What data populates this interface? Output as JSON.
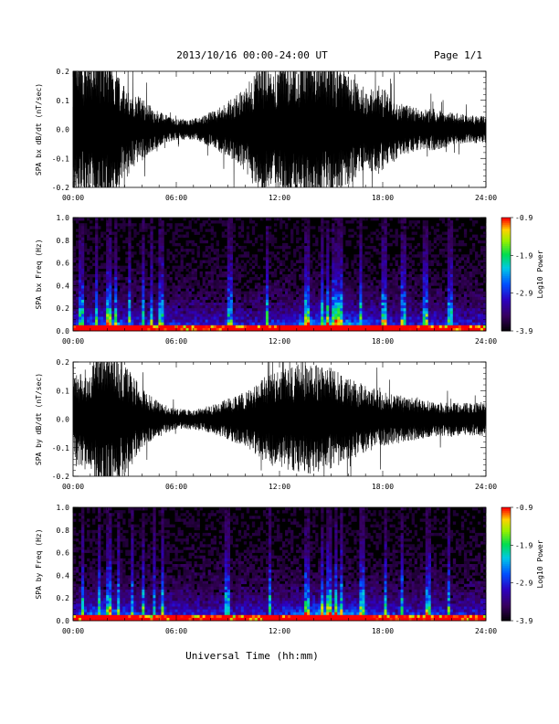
{
  "header": {
    "title": "2013/10/16  00:00-24:00 UT",
    "page": "Page 1/1"
  },
  "footer": {
    "xlabel": "Universal Time (hh:mm)"
  },
  "colors": {
    "trace": "#000000",
    "background": "#ffffff",
    "spec_bg": "#000000"
  },
  "chart_data": [
    {
      "type": "line",
      "ylabel": "SPA bx dB/dt (nT/sec)",
      "x_ticks": [
        "00:00",
        "06:00",
        "12:00",
        "18:00",
        "24:00"
      ],
      "x_range": [
        "00:00",
        "24:00"
      ],
      "y_ticks": [
        "0.2",
        "0.1",
        "0.0",
        "-0.1",
        "-0.2"
      ],
      "ylim": [
        -0.2,
        0.2
      ],
      "amplitude_envelope": [
        {
          "hour": 0,
          "amp": 0.22
        },
        {
          "hour": 1,
          "amp": 0.2
        },
        {
          "hour": 2,
          "amp": 0.25
        },
        {
          "hour": 3,
          "amp": 0.12
        },
        {
          "hour": 4,
          "amp": 0.09
        },
        {
          "hour": 5,
          "amp": 0.05
        },
        {
          "hour": 6,
          "amp": 0.03
        },
        {
          "hour": 7,
          "amp": 0.03
        },
        {
          "hour": 8,
          "amp": 0.05
        },
        {
          "hour": 9,
          "amp": 0.08
        },
        {
          "hour": 10,
          "amp": 0.12
        },
        {
          "hour": 11,
          "amp": 0.2
        },
        {
          "hour": 12,
          "amp": 0.18
        },
        {
          "hour": 13,
          "amp": 0.2
        },
        {
          "hour": 14,
          "amp": 0.22
        },
        {
          "hour": 15,
          "amp": 0.2
        },
        {
          "hour": 16,
          "amp": 0.16
        },
        {
          "hour": 17,
          "amp": 0.12
        },
        {
          "hour": 18,
          "amp": 0.12
        },
        {
          "hour": 19,
          "amp": 0.08
        },
        {
          "hour": 20,
          "amp": 0.06
        },
        {
          "hour": 21,
          "amp": 0.06
        },
        {
          "hour": 22,
          "amp": 0.05
        },
        {
          "hour": 23,
          "amp": 0.04
        },
        {
          "hour": 24,
          "amp": 0.04
        }
      ]
    },
    {
      "type": "heatmap",
      "ylabel": "SPA bx Freq (Hz)",
      "x_ticks": [
        "00:00",
        "06:00",
        "12:00",
        "18:00",
        "24:00"
      ],
      "y_ticks": [
        "1.0",
        "0.8",
        "0.6",
        "0.4",
        "0.2",
        "0.0"
      ],
      "ylim": [
        0.0,
        1.0
      ],
      "colorbar": {
        "label": "Log10 Power",
        "ticks": [
          "-0.9",
          "-1.9",
          "-2.9",
          "-3.9"
        ],
        "range": [
          -3.9,
          -0.9
        ]
      },
      "bursts_hours": [
        0.5,
        1.4,
        2.1,
        2.5,
        3.3,
        4.1,
        4.6,
        5.1,
        9.1,
        11.3,
        13.6,
        14.5,
        14.8,
        15.2,
        15.5,
        16.7,
        18.1,
        19.2,
        20.5,
        21.9
      ]
    },
    {
      "type": "line",
      "ylabel": "SPA by dB/dt (nT/sec)",
      "x_ticks": [
        "00:00",
        "06:00",
        "12:00",
        "18:00",
        "24:00"
      ],
      "x_range": [
        "00:00",
        "24:00"
      ],
      "y_ticks": [
        "0.2",
        "0.1",
        "0.0",
        "-0.1",
        "-0.2"
      ],
      "ylim": [
        -0.2,
        0.2
      ],
      "amplitude_envelope": [
        {
          "hour": 0,
          "amp": 0.12
        },
        {
          "hour": 1,
          "amp": 0.16
        },
        {
          "hour": 2,
          "amp": 0.25
        },
        {
          "hour": 3,
          "amp": 0.16
        },
        {
          "hour": 4,
          "amp": 0.09
        },
        {
          "hour": 5,
          "amp": 0.05
        },
        {
          "hour": 6,
          "amp": 0.03
        },
        {
          "hour": 7,
          "amp": 0.03
        },
        {
          "hour": 8,
          "amp": 0.04
        },
        {
          "hour": 9,
          "amp": 0.06
        },
        {
          "hour": 10,
          "amp": 0.08
        },
        {
          "hour": 11,
          "amp": 0.12
        },
        {
          "hour": 12,
          "amp": 0.14
        },
        {
          "hour": 13,
          "amp": 0.16
        },
        {
          "hour": 14,
          "amp": 0.16
        },
        {
          "hour": 15,
          "amp": 0.15
        },
        {
          "hour": 16,
          "amp": 0.12
        },
        {
          "hour": 17,
          "amp": 0.1
        },
        {
          "hour": 18,
          "amp": 0.08
        },
        {
          "hour": 19,
          "amp": 0.07
        },
        {
          "hour": 20,
          "amp": 0.06
        },
        {
          "hour": 21,
          "amp": 0.05
        },
        {
          "hour": 22,
          "amp": 0.05
        },
        {
          "hour": 23,
          "amp": 0.05
        },
        {
          "hour": 24,
          "amp": 0.05
        }
      ]
    },
    {
      "type": "heatmap",
      "ylabel": "SPA by Freq (Hz)",
      "x_ticks": [
        "00:00",
        "06:00",
        "12:00",
        "18:00",
        "24:00"
      ],
      "y_ticks": [
        "1.0",
        "0.8",
        "0.6",
        "0.4",
        "0.2",
        "0.0"
      ],
      "ylim": [
        0.0,
        1.0
      ],
      "colorbar": {
        "label": "Log10 Power",
        "ticks": [
          "-0.9",
          "-1.9",
          "-2.9",
          "-3.9"
        ],
        "range": [
          -3.9,
          -0.9
        ]
      },
      "bursts_hours": [
        0.6,
        1.5,
        2.1,
        2.6,
        3.4,
        4.1,
        4.7,
        5.2,
        9.0,
        11.4,
        13.6,
        14.5,
        14.9,
        15.3,
        15.6,
        16.8,
        18.2,
        19.1,
        20.6,
        21.8
      ]
    }
  ]
}
